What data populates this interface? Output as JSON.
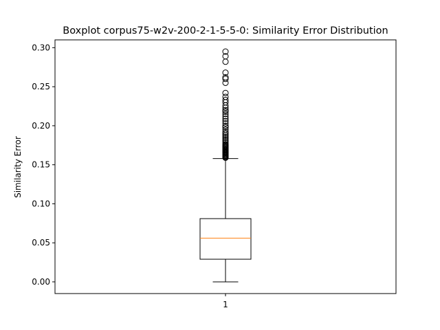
{
  "chart_data": {
    "type": "boxplot",
    "title": "Boxplot corpus75-w2v-200-2-1-5-5-0: Similarity Error Distribution",
    "xlabel": "",
    "ylabel": "Similarity Error",
    "categories": [
      "1"
    ],
    "ylim": [
      -0.015,
      0.31
    ],
    "yticks": [
      "0.00",
      "0.05",
      "0.10",
      "0.15",
      "0.20",
      "0.25",
      "0.30"
    ],
    "grid": false,
    "series": [
      {
        "whisker_low": 0.0,
        "q1": 0.029,
        "median": 0.056,
        "q3": 0.081,
        "whisker_high": 0.158,
        "outliers": [
          0.159,
          0.16,
          0.161,
          0.162,
          0.163,
          0.164,
          0.165,
          0.166,
          0.167,
          0.168,
          0.169,
          0.17,
          0.171,
          0.172,
          0.173,
          0.174,
          0.175,
          0.176,
          0.178,
          0.18,
          0.182,
          0.184,
          0.186,
          0.188,
          0.19,
          0.192,
          0.195,
          0.198,
          0.2,
          0.203,
          0.206,
          0.209,
          0.212,
          0.215,
          0.218,
          0.22,
          0.223,
          0.226,
          0.23,
          0.233,
          0.237,
          0.242,
          0.255,
          0.26,
          0.262,
          0.268,
          0.282,
          0.289,
          0.295
        ]
      }
    ],
    "colors": {
      "box": "#000000",
      "median": "#ff7f0e",
      "outlier": "#000000"
    }
  }
}
